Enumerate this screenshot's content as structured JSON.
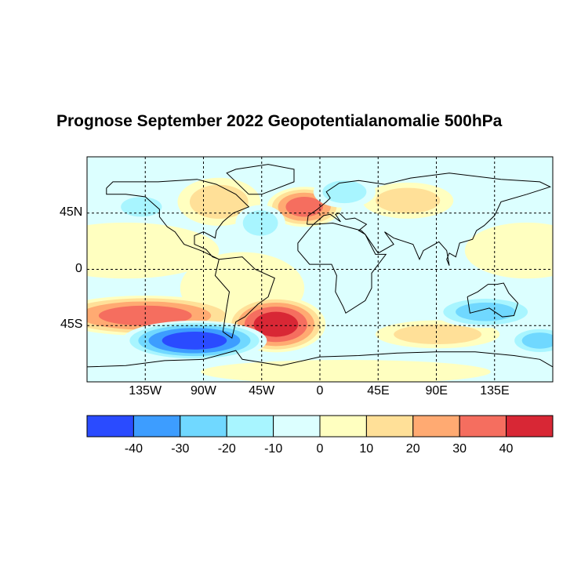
{
  "title": "Prognose September 2022 Geopotentialanomalie 500hPa",
  "map": {
    "projection": "equirectangular",
    "lon_range": [
      -180,
      180
    ],
    "lat_range": [
      -90,
      90
    ],
    "graticule": "dashed",
    "x_ticks": [
      {
        "lon": -135,
        "label": "135W"
      },
      {
        "lon": -90,
        "label": "90W"
      },
      {
        "lon": -45,
        "label": "45W"
      },
      {
        "lon": 0,
        "label": "0"
      },
      {
        "lon": 45,
        "label": "45E"
      },
      {
        "lon": 90,
        "label": "90E"
      },
      {
        "lon": 135,
        "label": "135E"
      }
    ],
    "y_ticks": [
      {
        "lat": 45,
        "label": "45N"
      },
      {
        "lat": 0,
        "label": "0"
      },
      {
        "lat": -45,
        "label": "45S"
      }
    ],
    "background_level": -5,
    "anomaly_centers": [
      {
        "lon": -150,
        "lat": 15,
        "value": 8,
        "rlon": 45,
        "rlat": 14
      },
      {
        "lon": -60,
        "lat": -15,
        "value": 8,
        "rlon": 30,
        "rlat": 18
      },
      {
        "lon": 160,
        "lat": 15,
        "value": 8,
        "rlon": 30,
        "rlat": 14
      },
      {
        "lon": 20,
        "lat": -82,
        "value": 8,
        "rlon": 70,
        "rlat": 6
      },
      {
        "lon": -12,
        "lat": 50,
        "value": 38,
        "rlon": 18,
        "rlat": 10
      },
      {
        "lon": -78,
        "lat": 54,
        "value": 18,
        "rlon": 20,
        "rlat": 12
      },
      {
        "lon": 68,
        "lat": 55,
        "value": 18,
        "rlon": 22,
        "rlat": 9
      },
      {
        "lon": -135,
        "lat": -37,
        "value": 38,
        "rlon": 45,
        "rlat": 10
      },
      {
        "lon": -34,
        "lat": -44,
        "value": 42,
        "rlon": 24,
        "rlat": 14
      },
      {
        "lon": 91,
        "lat": -52,
        "value": 15,
        "rlon": 30,
        "rlat": 7
      },
      {
        "lon": -97,
        "lat": -57,
        "value": -42,
        "rlon": 35,
        "rlat": 10
      },
      {
        "lon": 128,
        "lat": -34,
        "value": -22,
        "rlon": 25,
        "rlat": 8
      },
      {
        "lon": -138,
        "lat": 50,
        "value": -16,
        "rlon": 14,
        "rlat": 7
      },
      {
        "lon": -46,
        "lat": 37,
        "value": -16,
        "rlon": 12,
        "rlat": 9
      },
      {
        "lon": 19,
        "lat": 62,
        "value": -12,
        "rlon": 15,
        "rlat": 8
      },
      {
        "lon": 170,
        "lat": -57,
        "value": -22,
        "rlon": 15,
        "rlat": 7
      }
    ]
  },
  "colorbar": {
    "levels": [
      -50,
      -40,
      -30,
      -20,
      -10,
      0,
      10,
      20,
      30,
      40,
      50
    ],
    "colors": [
      "#2a4bff",
      "#3d9dff",
      "#70d8ff",
      "#a8f5ff",
      "#dcffff",
      "#ffffc0",
      "#ffe098",
      "#ffaa72",
      "#f56e5f",
      "#d82735"
    ],
    "tick_labels": [
      "-40",
      "-30",
      "-20",
      "-10",
      "0",
      "10",
      "20",
      "30",
      "40"
    ]
  }
}
